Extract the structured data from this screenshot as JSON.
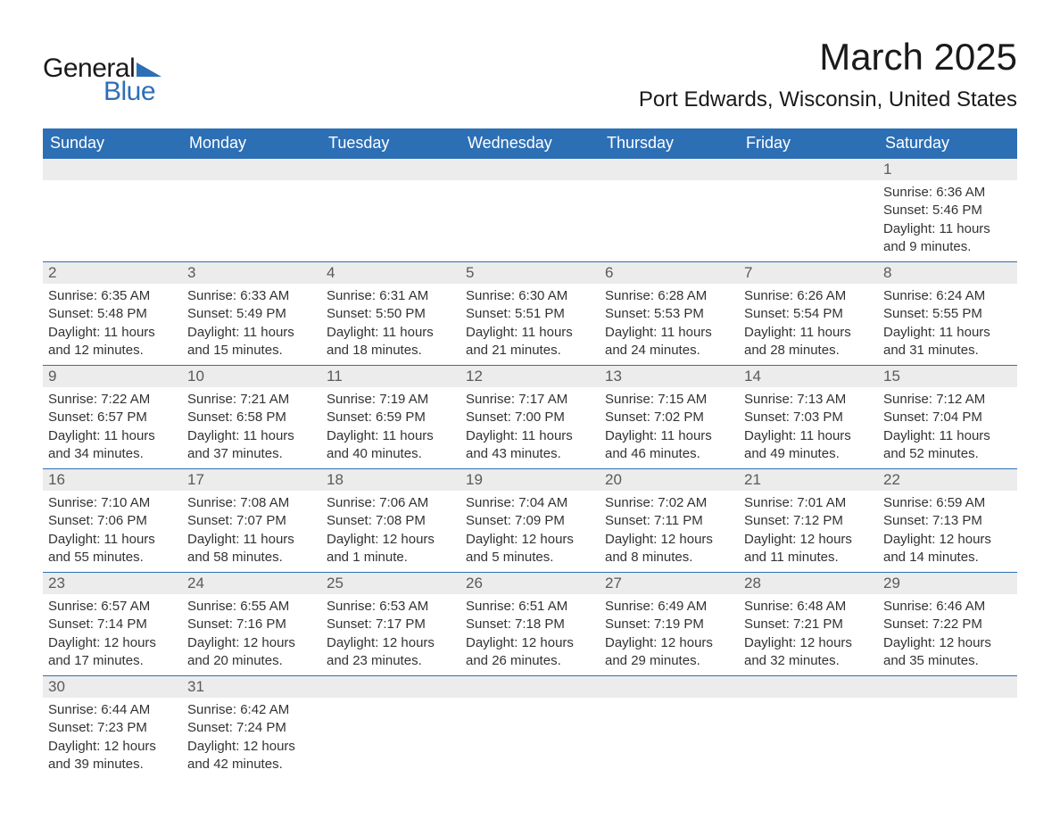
{
  "logo": {
    "text_general": "General",
    "text_blue": "Blue",
    "triangle_color": "#2d6fb5"
  },
  "title": "March 2025",
  "location": "Port Edwards, Wisconsin, United States",
  "colors": {
    "header_bg": "#2d6fb5",
    "header_text": "#ffffff",
    "day_bar_bg": "#ececec",
    "day_bar_text": "#5a5a5a",
    "body_text": "#333333",
    "row_border": "#2d6fb5",
    "page_bg": "#ffffff"
  },
  "day_headers": [
    "Sunday",
    "Monday",
    "Tuesday",
    "Wednesday",
    "Thursday",
    "Friday",
    "Saturday"
  ],
  "weeks": [
    [
      {
        "blank": true
      },
      {
        "blank": true
      },
      {
        "blank": true
      },
      {
        "blank": true
      },
      {
        "blank": true
      },
      {
        "blank": true
      },
      {
        "day": "1",
        "sunrise": "Sunrise: 6:36 AM",
        "sunset": "Sunset: 5:46 PM",
        "daylight1": "Daylight: 11 hours",
        "daylight2": "and 9 minutes."
      }
    ],
    [
      {
        "day": "2",
        "sunrise": "Sunrise: 6:35 AM",
        "sunset": "Sunset: 5:48 PM",
        "daylight1": "Daylight: 11 hours",
        "daylight2": "and 12 minutes."
      },
      {
        "day": "3",
        "sunrise": "Sunrise: 6:33 AM",
        "sunset": "Sunset: 5:49 PM",
        "daylight1": "Daylight: 11 hours",
        "daylight2": "and 15 minutes."
      },
      {
        "day": "4",
        "sunrise": "Sunrise: 6:31 AM",
        "sunset": "Sunset: 5:50 PM",
        "daylight1": "Daylight: 11 hours",
        "daylight2": "and 18 minutes."
      },
      {
        "day": "5",
        "sunrise": "Sunrise: 6:30 AM",
        "sunset": "Sunset: 5:51 PM",
        "daylight1": "Daylight: 11 hours",
        "daylight2": "and 21 minutes."
      },
      {
        "day": "6",
        "sunrise": "Sunrise: 6:28 AM",
        "sunset": "Sunset: 5:53 PM",
        "daylight1": "Daylight: 11 hours",
        "daylight2": "and 24 minutes."
      },
      {
        "day": "7",
        "sunrise": "Sunrise: 6:26 AM",
        "sunset": "Sunset: 5:54 PM",
        "daylight1": "Daylight: 11 hours",
        "daylight2": "and 28 minutes."
      },
      {
        "day": "8",
        "sunrise": "Sunrise: 6:24 AM",
        "sunset": "Sunset: 5:55 PM",
        "daylight1": "Daylight: 11 hours",
        "daylight2": "and 31 minutes."
      }
    ],
    [
      {
        "day": "9",
        "sunrise": "Sunrise: 7:22 AM",
        "sunset": "Sunset: 6:57 PM",
        "daylight1": "Daylight: 11 hours",
        "daylight2": "and 34 minutes."
      },
      {
        "day": "10",
        "sunrise": "Sunrise: 7:21 AM",
        "sunset": "Sunset: 6:58 PM",
        "daylight1": "Daylight: 11 hours",
        "daylight2": "and 37 minutes."
      },
      {
        "day": "11",
        "sunrise": "Sunrise: 7:19 AM",
        "sunset": "Sunset: 6:59 PM",
        "daylight1": "Daylight: 11 hours",
        "daylight2": "and 40 minutes."
      },
      {
        "day": "12",
        "sunrise": "Sunrise: 7:17 AM",
        "sunset": "Sunset: 7:00 PM",
        "daylight1": "Daylight: 11 hours",
        "daylight2": "and 43 minutes."
      },
      {
        "day": "13",
        "sunrise": "Sunrise: 7:15 AM",
        "sunset": "Sunset: 7:02 PM",
        "daylight1": "Daylight: 11 hours",
        "daylight2": "and 46 minutes."
      },
      {
        "day": "14",
        "sunrise": "Sunrise: 7:13 AM",
        "sunset": "Sunset: 7:03 PM",
        "daylight1": "Daylight: 11 hours",
        "daylight2": "and 49 minutes."
      },
      {
        "day": "15",
        "sunrise": "Sunrise: 7:12 AM",
        "sunset": "Sunset: 7:04 PM",
        "daylight1": "Daylight: 11 hours",
        "daylight2": "and 52 minutes."
      }
    ],
    [
      {
        "day": "16",
        "sunrise": "Sunrise: 7:10 AM",
        "sunset": "Sunset: 7:06 PM",
        "daylight1": "Daylight: 11 hours",
        "daylight2": "and 55 minutes."
      },
      {
        "day": "17",
        "sunrise": "Sunrise: 7:08 AM",
        "sunset": "Sunset: 7:07 PM",
        "daylight1": "Daylight: 11 hours",
        "daylight2": "and 58 minutes."
      },
      {
        "day": "18",
        "sunrise": "Sunrise: 7:06 AM",
        "sunset": "Sunset: 7:08 PM",
        "daylight1": "Daylight: 12 hours",
        "daylight2": "and 1 minute."
      },
      {
        "day": "19",
        "sunrise": "Sunrise: 7:04 AM",
        "sunset": "Sunset: 7:09 PM",
        "daylight1": "Daylight: 12 hours",
        "daylight2": "and 5 minutes."
      },
      {
        "day": "20",
        "sunrise": "Sunrise: 7:02 AM",
        "sunset": "Sunset: 7:11 PM",
        "daylight1": "Daylight: 12 hours",
        "daylight2": "and 8 minutes."
      },
      {
        "day": "21",
        "sunrise": "Sunrise: 7:01 AM",
        "sunset": "Sunset: 7:12 PM",
        "daylight1": "Daylight: 12 hours",
        "daylight2": "and 11 minutes."
      },
      {
        "day": "22",
        "sunrise": "Sunrise: 6:59 AM",
        "sunset": "Sunset: 7:13 PM",
        "daylight1": "Daylight: 12 hours",
        "daylight2": "and 14 minutes."
      }
    ],
    [
      {
        "day": "23",
        "sunrise": "Sunrise: 6:57 AM",
        "sunset": "Sunset: 7:14 PM",
        "daylight1": "Daylight: 12 hours",
        "daylight2": "and 17 minutes."
      },
      {
        "day": "24",
        "sunrise": "Sunrise: 6:55 AM",
        "sunset": "Sunset: 7:16 PM",
        "daylight1": "Daylight: 12 hours",
        "daylight2": "and 20 minutes."
      },
      {
        "day": "25",
        "sunrise": "Sunrise: 6:53 AM",
        "sunset": "Sunset: 7:17 PM",
        "daylight1": "Daylight: 12 hours",
        "daylight2": "and 23 minutes."
      },
      {
        "day": "26",
        "sunrise": "Sunrise: 6:51 AM",
        "sunset": "Sunset: 7:18 PM",
        "daylight1": "Daylight: 12 hours",
        "daylight2": "and 26 minutes."
      },
      {
        "day": "27",
        "sunrise": "Sunrise: 6:49 AM",
        "sunset": "Sunset: 7:19 PM",
        "daylight1": "Daylight: 12 hours",
        "daylight2": "and 29 minutes."
      },
      {
        "day": "28",
        "sunrise": "Sunrise: 6:48 AM",
        "sunset": "Sunset: 7:21 PM",
        "daylight1": "Daylight: 12 hours",
        "daylight2": "and 32 minutes."
      },
      {
        "day": "29",
        "sunrise": "Sunrise: 6:46 AM",
        "sunset": "Sunset: 7:22 PM",
        "daylight1": "Daylight: 12 hours",
        "daylight2": "and 35 minutes."
      }
    ],
    [
      {
        "day": "30",
        "sunrise": "Sunrise: 6:44 AM",
        "sunset": "Sunset: 7:23 PM",
        "daylight1": "Daylight: 12 hours",
        "daylight2": "and 39 minutes."
      },
      {
        "day": "31",
        "sunrise": "Sunrise: 6:42 AM",
        "sunset": "Sunset: 7:24 PM",
        "daylight1": "Daylight: 12 hours",
        "daylight2": "and 42 minutes."
      },
      {
        "blank": true
      },
      {
        "blank": true
      },
      {
        "blank": true
      },
      {
        "blank": true
      },
      {
        "blank": true
      }
    ]
  ]
}
